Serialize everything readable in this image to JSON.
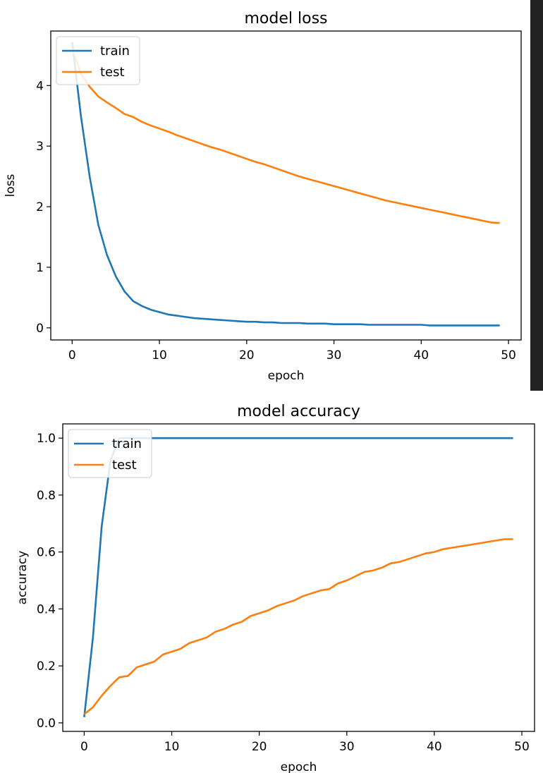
{
  "chart_data": [
    {
      "type": "line",
      "title": "model loss",
      "xlabel": "epoch",
      "ylabel": "loss",
      "xlim": [
        -2.45,
        51.45
      ],
      "ylim": [
        -0.2,
        4.9
      ],
      "xticks": [
        0,
        10,
        20,
        30,
        40,
        50
      ],
      "xtick_labels": [
        "0",
        "10",
        "20",
        "30",
        "40",
        "50"
      ],
      "yticks": [
        0,
        1,
        2,
        3,
        4
      ],
      "ytick_labels": [
        "0",
        "1",
        "2",
        "3",
        "4"
      ],
      "legend": "upper-left",
      "grid": false,
      "series": [
        {
          "name": "train",
          "color": "#1f77b4",
          "x": [
            0,
            1,
            2,
            3,
            4,
            5,
            6,
            7,
            8,
            9,
            10,
            11,
            12,
            13,
            14,
            15,
            16,
            17,
            18,
            19,
            20,
            21,
            22,
            23,
            24,
            25,
            26,
            27,
            28,
            29,
            30,
            31,
            32,
            33,
            34,
            35,
            36,
            37,
            38,
            39,
            40,
            41,
            42,
            43,
            44,
            45,
            46,
            47,
            48,
            49
          ],
          "y": [
            4.72,
            3.5,
            2.5,
            1.7,
            1.2,
            0.85,
            0.6,
            0.44,
            0.36,
            0.3,
            0.26,
            0.22,
            0.2,
            0.18,
            0.16,
            0.15,
            0.14,
            0.13,
            0.12,
            0.11,
            0.1,
            0.1,
            0.09,
            0.09,
            0.08,
            0.08,
            0.08,
            0.07,
            0.07,
            0.07,
            0.06,
            0.06,
            0.06,
            0.06,
            0.05,
            0.05,
            0.05,
            0.05,
            0.05,
            0.05,
            0.05,
            0.04,
            0.04,
            0.04,
            0.04,
            0.04,
            0.04,
            0.04,
            0.04,
            0.04
          ]
        },
        {
          "name": "test",
          "color": "#ff7f0e",
          "x": [
            0,
            1,
            2,
            3,
            4,
            5,
            6,
            7,
            8,
            9,
            10,
            11,
            12,
            13,
            14,
            15,
            16,
            17,
            18,
            19,
            20,
            21,
            22,
            23,
            24,
            25,
            26,
            27,
            28,
            29,
            30,
            31,
            32,
            33,
            34,
            35,
            36,
            37,
            38,
            39,
            40,
            41,
            42,
            43,
            44,
            45,
            46,
            47,
            48,
            49
          ],
          "y": [
            4.6,
            4.2,
            3.98,
            3.82,
            3.72,
            3.63,
            3.53,
            3.48,
            3.4,
            3.34,
            3.29,
            3.24,
            3.18,
            3.13,
            3.08,
            3.03,
            2.98,
            2.94,
            2.89,
            2.84,
            2.79,
            2.74,
            2.7,
            2.65,
            2.6,
            2.55,
            2.5,
            2.46,
            2.42,
            2.38,
            2.34,
            2.3,
            2.26,
            2.22,
            2.18,
            2.14,
            2.1,
            2.07,
            2.04,
            2.01,
            1.98,
            1.95,
            1.92,
            1.89,
            1.86,
            1.83,
            1.8,
            1.77,
            1.74,
            1.73
          ]
        }
      ]
    },
    {
      "type": "line",
      "title": "model accuracy",
      "xlabel": "epoch",
      "ylabel": "accuracy",
      "xlim": [
        -2.45,
        51.45
      ],
      "ylim": [
        -0.03,
        1.05
      ],
      "xticks": [
        0,
        10,
        20,
        30,
        40,
        50
      ],
      "xtick_labels": [
        "0",
        "10",
        "20",
        "30",
        "40",
        "50"
      ],
      "yticks": [
        0.0,
        0.2,
        0.4,
        0.6,
        0.8,
        1.0
      ],
      "ytick_labels": [
        "0.0",
        "0.2",
        "0.4",
        "0.6",
        "0.8",
        "1.0"
      ],
      "legend": "upper-left",
      "grid": false,
      "series": [
        {
          "name": "train",
          "color": "#1f77b4",
          "x": [
            0,
            1,
            2,
            3,
            4,
            5,
            6,
            7,
            8,
            9,
            10,
            11,
            12,
            13,
            14,
            15,
            16,
            17,
            18,
            19,
            20,
            21,
            22,
            23,
            24,
            25,
            26,
            27,
            28,
            29,
            30,
            31,
            32,
            33,
            34,
            35,
            36,
            37,
            38,
            39,
            40,
            41,
            42,
            43,
            44,
            45,
            46,
            47,
            48,
            49
          ],
          "y": [
            0.02,
            0.3,
            0.69,
            0.92,
            1.0,
            1.0,
            1.0,
            1.0,
            1.0,
            1.0,
            1.0,
            1.0,
            1.0,
            1.0,
            1.0,
            1.0,
            1.0,
            1.0,
            1.0,
            1.0,
            1.0,
            1.0,
            1.0,
            1.0,
            1.0,
            1.0,
            1.0,
            1.0,
            1.0,
            1.0,
            1.0,
            1.0,
            1.0,
            1.0,
            1.0,
            1.0,
            1.0,
            1.0,
            1.0,
            1.0,
            1.0,
            1.0,
            1.0,
            1.0,
            1.0,
            1.0,
            1.0,
            1.0,
            1.0,
            1.0
          ]
        },
        {
          "name": "test",
          "color": "#ff7f0e",
          "x": [
            0,
            1,
            2,
            3,
            4,
            5,
            6,
            7,
            8,
            9,
            10,
            11,
            12,
            13,
            14,
            15,
            16,
            17,
            18,
            19,
            20,
            21,
            22,
            23,
            24,
            25,
            26,
            27,
            28,
            29,
            30,
            31,
            32,
            33,
            34,
            35,
            36,
            37,
            38,
            39,
            40,
            41,
            42,
            43,
            44,
            45,
            46,
            47,
            48,
            49
          ],
          "y": [
            0.03,
            0.055,
            0.095,
            0.13,
            0.16,
            0.165,
            0.195,
            0.205,
            0.215,
            0.24,
            0.25,
            0.26,
            0.28,
            0.29,
            0.3,
            0.32,
            0.33,
            0.345,
            0.355,
            0.375,
            0.385,
            0.395,
            0.41,
            0.42,
            0.43,
            0.445,
            0.455,
            0.465,
            0.47,
            0.49,
            0.5,
            0.515,
            0.53,
            0.535,
            0.545,
            0.56,
            0.565,
            0.575,
            0.585,
            0.595,
            0.6,
            0.61,
            0.615,
            0.62,
            0.625,
            0.63,
            0.635,
            0.64,
            0.645,
            0.645
          ]
        }
      ]
    }
  ]
}
